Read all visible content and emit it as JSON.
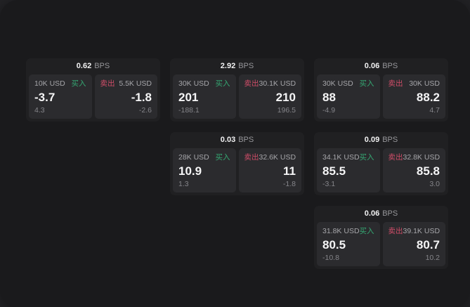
{
  "labels": {
    "buy": "买入",
    "sell": "卖出",
    "bps_unit": "BPS"
  },
  "colors": {
    "outer_bg": "#242427",
    "page_bg": "#1a1a1c",
    "card_bg": "#202022",
    "panel_bg": "#2b2b2e",
    "buy_green": "#35a873",
    "sell_red": "#cf4d68",
    "value_white": "#f5f5f6",
    "muted_gray": "#a6a6aa"
  },
  "cards": [
    {
      "bps": "0.62",
      "buy": {
        "amount": "10K USD",
        "value": "-3.7",
        "delta": "4.3"
      },
      "sell": {
        "amount": "5.5K USD",
        "value": "-1.8",
        "delta": "-2.6"
      }
    },
    {
      "bps": "2.92",
      "buy": {
        "amount": "30K USD",
        "value": "201",
        "delta": "-188.1"
      },
      "sell": {
        "amount": "30.1K USD",
        "value": "210",
        "delta": "196.5"
      }
    },
    {
      "bps": "0.06",
      "buy": {
        "amount": "30K USD",
        "value": "88",
        "delta": "-4.9"
      },
      "sell": {
        "amount": "30K USD",
        "value": "88.2",
        "delta": "4.7"
      }
    },
    {
      "bps": "0.03",
      "buy": {
        "amount": "28K USD",
        "value": "10.9",
        "delta": "1.3"
      },
      "sell": {
        "amount": "32.6K USD",
        "value": "11",
        "delta": "-1.8"
      }
    },
    {
      "bps": "0.09",
      "buy": {
        "amount": "34.1K USD",
        "value": "85.5",
        "delta": "-3.1"
      },
      "sell": {
        "amount": "32.8K USD",
        "value": "85.8",
        "delta": "3.0"
      }
    },
    {
      "bps": "0.06",
      "buy": {
        "amount": "31.8K USD",
        "value": "80.5",
        "delta": "-10.8"
      },
      "sell": {
        "amount": "39.1K USD",
        "value": "80.7",
        "delta": "10.2"
      }
    }
  ]
}
